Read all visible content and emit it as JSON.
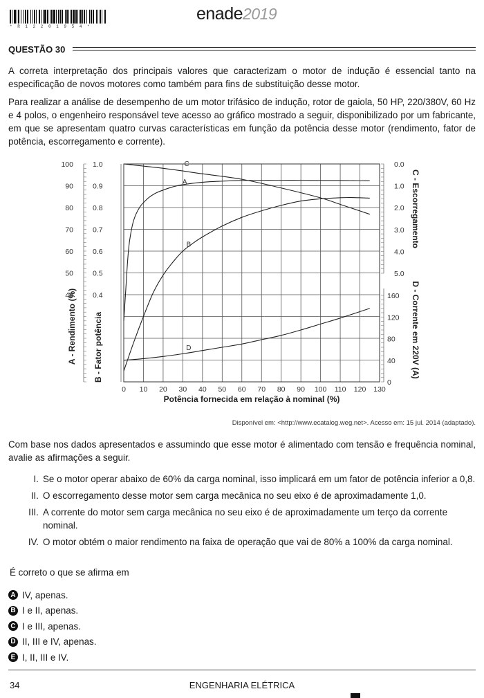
{
  "header": {
    "barcode_text": "* R 1 2 2 0 1 9 5 4 *",
    "logo_brand": "enade",
    "logo_year": "2019"
  },
  "question": {
    "title": "QUESTÃO 30",
    "intro": "A correta interpretação dos principais valores que caracterizam o motor de indução é essencial tanto na especificação de novos motores como também para fins de substituição desse motor.",
    "context": "Para realizar a análise de desempenho de um motor trifásico de indução, rotor de gaiola, 50 HP, 220/380V, 60 Hz e 4 polos, o engenheiro responsável teve acesso ao gráfico mostrado a seguir, disponibilizado por um fabricante, em que se apresentam quatro curvas características em função da potência desse motor (rendimento, fator de potência, escorregamento e corrente).",
    "source": "Disponível em: <http://www.ecatalog.weg.net>. Acesso em: 15 jul. 2014 (adaptado).",
    "prompt": "Com base nos dados apresentados e assumindo que esse motor é alimentado com tensão e frequência nominal, avalie as afirmações a seguir.",
    "statements": [
      {
        "num": "I.",
        "text": "Se o motor operar abaixo de 60% da carga nominal, isso implicará em um fator de potência inferior a 0,8."
      },
      {
        "num": "II.",
        "text": "O escorregamento desse motor sem carga mecânica no seu eixo é de aproximadamente 1,0."
      },
      {
        "num": "III.",
        "text": "A corrente do motor sem carga mecânica no seu eixo é de aproximadamente um terço da corrente nominal."
      },
      {
        "num": "IV.",
        "text": "O motor obtém o maior rendimento na faixa de operação que vai de 80% a 100% da carga nominal."
      }
    ],
    "correct_prompt": "É correto o que se afirma em",
    "options": [
      {
        "letter": "A",
        "text": "IV, apenas."
      },
      {
        "letter": "B",
        "text": "I e II, apenas."
      },
      {
        "letter": "C",
        "text": "I e III, apenas."
      },
      {
        "letter": "D",
        "text": "II, III e IV, apenas."
      },
      {
        "letter": "E",
        "text": "I, II, III e IV."
      }
    ]
  },
  "footer": {
    "page_number": "34",
    "course": "ENGENHARIA ELÉTRICA"
  },
  "chart_data": {
    "type": "line",
    "xlabel": "Potência fornecida em relação à nominal (%)",
    "xlim": [
      0,
      130
    ],
    "x_ticks": [
      "0",
      "10",
      "20",
      "30",
      "40",
      "50",
      "60",
      "70",
      "80",
      "90",
      "100",
      "110",
      "120",
      "130"
    ],
    "axes": {
      "A": {
        "label": "A - Rendimento (%)",
        "ticks": [
          "100",
          "90",
          "80",
          "70",
          "60",
          "50",
          "40"
        ]
      },
      "B": {
        "label": "B - Fator potência",
        "ticks": [
          "1.0",
          "0.9",
          "0.8",
          "0.7",
          "0.6",
          "0.5",
          "0.4"
        ]
      },
      "C": {
        "label": "C - Escorregamento",
        "ticks": [
          "0.0",
          "1.0",
          "2.0",
          "3.0",
          "4.0",
          "5.0"
        ]
      },
      "D": {
        "label": "D - Corrente em 220V (A)",
        "ticks": [
          "160",
          "120",
          "80",
          "40",
          "0"
        ]
      }
    },
    "series": [
      {
        "name": "A",
        "label": "A",
        "unit": "%",
        "x": [
          0,
          1,
          2,
          3,
          5,
          8,
          12,
          16,
          20,
          25,
          30,
          40,
          50,
          60,
          70,
          80,
          90,
          100,
          110,
          120,
          125
        ],
        "values": [
          28,
          42,
          56,
          65,
          74,
          80,
          84,
          86.5,
          88,
          89.5,
          90.5,
          91.6,
          92.1,
          92.4,
          92.5,
          92.5,
          92.5,
          92.4,
          92.4,
          92.3,
          92.3
        ]
      },
      {
        "name": "B",
        "label": "B",
        "unit": "pu",
        "x": [
          0,
          5,
          10,
          15,
          20,
          25,
          30,
          35,
          40,
          50,
          60,
          70,
          80,
          90,
          100,
          110,
          115,
          120,
          125
        ],
        "values": [
          0.05,
          0.18,
          0.3,
          0.41,
          0.49,
          0.55,
          0.6,
          0.635,
          0.665,
          0.715,
          0.755,
          0.785,
          0.81,
          0.83,
          0.84,
          0.845,
          0.846,
          0.845,
          0.843
        ]
      },
      {
        "name": "C",
        "label": "C",
        "unit": "%",
        "x": [
          0,
          20,
          40,
          60,
          80,
          100,
          110,
          125
        ],
        "values": [
          0.0,
          0.2,
          0.45,
          0.7,
          1.1,
          1.55,
          1.85,
          2.3
        ]
      },
      {
        "name": "D",
        "label": "D",
        "unit": "A",
        "x": [
          0,
          10,
          20,
          30,
          40,
          50,
          60,
          70,
          80,
          90,
          100,
          110,
          125
        ],
        "values": [
          40,
          43,
          47,
          52,
          58,
          64,
          70,
          78,
          86,
          96,
          107,
          118,
          136
        ]
      }
    ]
  }
}
